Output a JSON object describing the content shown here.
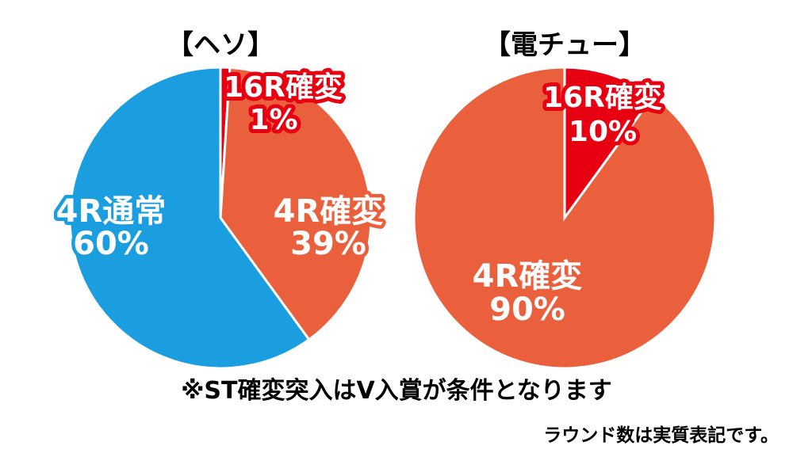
{
  "chart_data": [
    {
      "type": "pie",
      "title": "【ヘソ】",
      "slices": [
        {
          "label": "16R確変",
          "value": 1,
          "value_text": "1%",
          "color": "#e60012"
        },
        {
          "label": "4R確変",
          "value": 39,
          "value_text": "39%",
          "color": "#ea603d"
        },
        {
          "label": "4R通常",
          "value": 60,
          "value_text": "60%",
          "color": "#1a9ee0"
        }
      ]
    },
    {
      "type": "pie",
      "title": "【電チュー】",
      "slices": [
        {
          "label": "16R確変",
          "value": 10,
          "value_text": "10%",
          "color": "#e60012"
        },
        {
          "label": "4R確変",
          "value": 90,
          "value_text": "90%",
          "color": "#ea603d"
        }
      ]
    }
  ],
  "note": "※ST確変突入はV入賞が条件となります",
  "footnote": "ラウンド数は実質表記です。"
}
